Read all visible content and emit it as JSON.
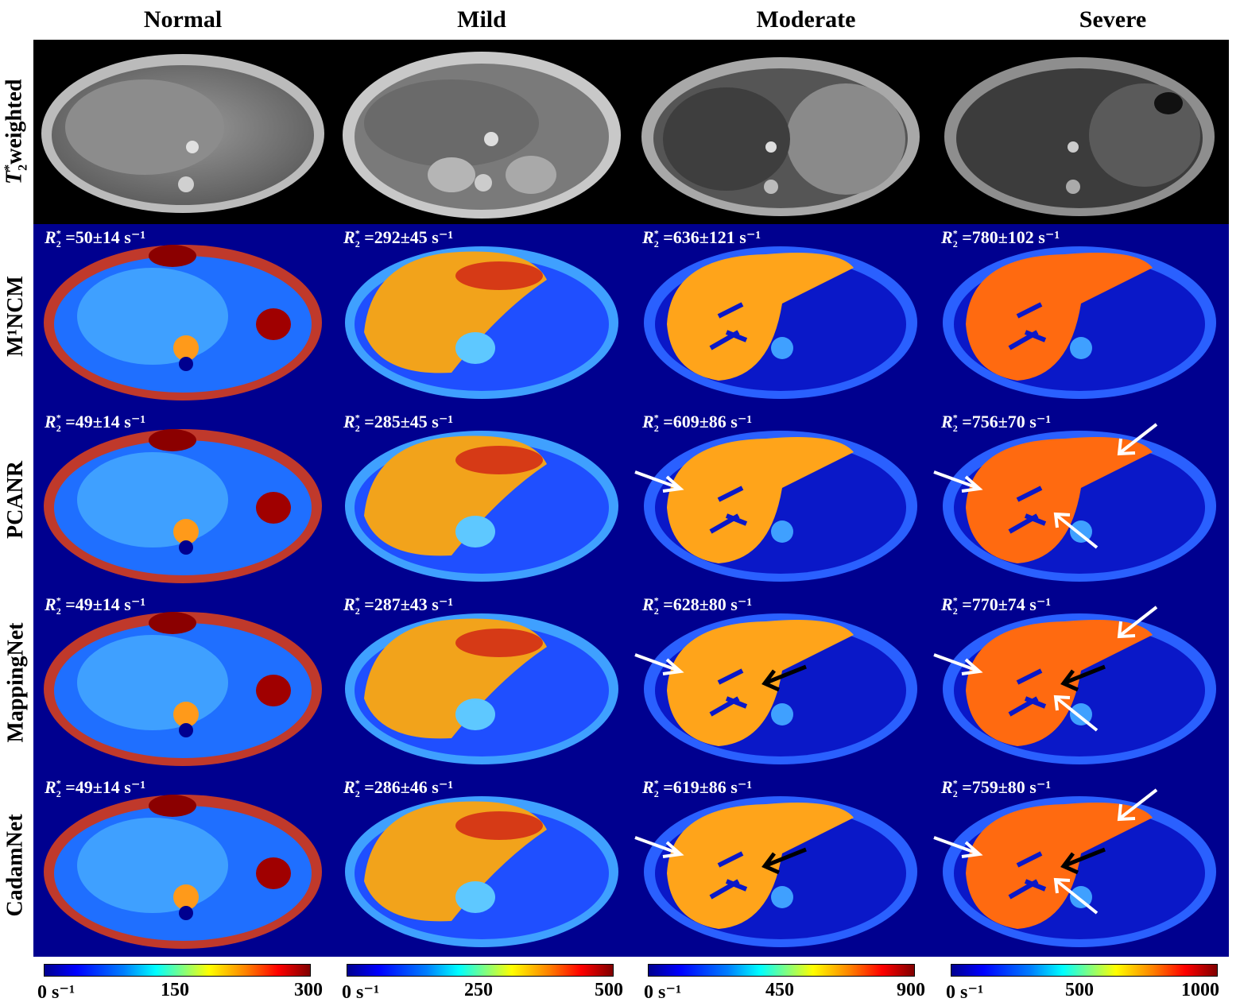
{
  "columns": [
    "Normal",
    "Mild",
    "Moderate",
    "Severe"
  ],
  "rows": [
    "T2* weighted",
    "M¹NCM",
    "PCANR",
    "MappingNet",
    "CadamNet"
  ],
  "row_label_t2": {
    "main": "T",
    "sub": "2",
    "sup": "*",
    "rest": " weighted"
  },
  "r2_values": [
    [
      "=50±14 s⁻¹",
      "=292±45 s⁻¹",
      "=636±121 s⁻¹",
      "=780±102 s⁻¹"
    ],
    [
      "=49±14 s⁻¹",
      "=285±45 s⁻¹",
      "=609±86 s⁻¹",
      "=756±70 s⁻¹"
    ],
    [
      "=49±14 s⁻¹",
      "=287±43 s⁻¹",
      "=628±80 s⁻¹",
      "=770±74 s⁻¹"
    ],
    [
      "=49±14 s⁻¹",
      "=286±46 s⁻¹",
      "=619±86 s⁻¹",
      "=759±80 s⁻¹"
    ]
  ],
  "colorbars": [
    {
      "min": "0 s⁻¹",
      "mid": "150",
      "max": "300"
    },
    {
      "min": "0 s⁻¹",
      "mid": "250",
      "max": "500"
    },
    {
      "min": "0 s⁻¹",
      "mid": "450",
      "max": "900"
    },
    {
      "min": "0 s⁻¹",
      "mid": "500",
      "max": "1000"
    }
  ],
  "colors": {
    "background_map": "#00008f",
    "liver_hot": "#ff7a00",
    "tissue_cool": "#3fa0ff",
    "arrow_white": "#ffffff",
    "arrow_black": "#000000"
  }
}
